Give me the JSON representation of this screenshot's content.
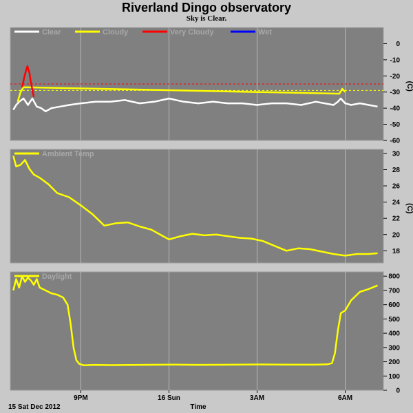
{
  "header": {
    "title": "Riverland Dingo observatory",
    "subtitle": "Sky is Clear."
  },
  "footer": {
    "date": "15 Sat Dec 2012",
    "xlabel": "Time"
  },
  "colors": {
    "background": "#c9c9c9",
    "plot_bg": "#808080",
    "grid": "#b9b9b9",
    "clear": "#ffffff",
    "cloudy": "#ffff00",
    "very_cloudy": "#ff0000",
    "wet": "#0000ff",
    "ambient": "#ffff00",
    "daylight": "#ffff00"
  },
  "chart_data": [
    {
      "type": "line",
      "panel": "sky",
      "unit": "(C)",
      "legend": [
        "Clear",
        "Cloudy",
        "Very Cloudy",
        "Wet"
      ],
      "legend_placement": "top-left",
      "grid": true,
      "ylim": [
        -60,
        10
      ],
      "yticks": [
        0,
        -10,
        -20,
        -30,
        -40,
        -50,
        -60
      ],
      "xlim": [
        18.6,
        31.3
      ],
      "xticks": [
        {
          "x": 21,
          "label": "9PM"
        },
        {
          "x": 24,
          "label": "16 Sun"
        },
        {
          "x": 27,
          "label": "3AM"
        },
        {
          "x": 30,
          "label": "6AM"
        }
      ],
      "thresholds": [
        {
          "name": "Cloudy",
          "value": -29,
          "color": "#ffff00"
        },
        {
          "name": "Very Cloudy",
          "value": -25,
          "color": "#ff0000"
        }
      ],
      "series": [
        {
          "name": "Clear",
          "color": "#ffffff",
          "x": [
            18.7,
            18.8,
            18.9,
            19.05,
            19.2,
            19.35,
            19.5,
            19.65,
            19.8,
            20.0,
            20.3,
            20.6,
            21.0,
            21.5,
            22.0,
            22.5,
            23.0,
            23.5,
            24.0,
            24.5,
            25.0,
            25.5,
            26.0,
            26.5,
            27.0,
            27.5,
            28.0,
            28.5,
            29.0,
            29.3,
            29.6,
            29.75,
            29.85,
            30.0,
            30.2,
            30.5,
            30.8,
            31.1
          ],
          "y": [
            -41,
            -38,
            -36,
            -34,
            -38,
            -34,
            -39,
            -40,
            -42,
            -40,
            -39,
            -38,
            -37,
            -36,
            -36,
            -35,
            -37,
            -36,
            -34,
            -36,
            -37,
            -36,
            -37,
            -37,
            -38,
            -37,
            -37,
            -38,
            -36,
            -37,
            -38,
            -36,
            -34,
            -37,
            -38,
            -37,
            -38,
            -39
          ]
        },
        {
          "name": "Cloudy",
          "color": "#ffff00",
          "x": [
            18.85,
            18.95,
            19.05,
            29.8,
            29.9,
            30.0
          ],
          "y": [
            -36,
            -30,
            -27,
            -31,
            -28,
            -30
          ]
        },
        {
          "name": "Very Cloudy",
          "color": "#ff0000",
          "x": [
            19.0,
            19.1,
            19.18,
            19.25,
            19.3,
            19.4
          ],
          "y": [
            -27,
            -19,
            -14,
            -18,
            -24,
            -33
          ]
        }
      ]
    },
    {
      "type": "line",
      "panel": "ambient",
      "unit": "(C)",
      "legend": [
        "Ambient Temp"
      ],
      "legend_placement": "top-left",
      "grid": true,
      "ylim": [
        16.5,
        30.5
      ],
      "yticks": [
        30,
        28,
        26,
        24,
        22,
        20,
        18
      ],
      "xlim": [
        18.6,
        31.3
      ],
      "series": [
        {
          "name": "Ambient Temp",
          "color": "#ffff00",
          "x": [
            18.7,
            18.8,
            18.95,
            19.1,
            19.25,
            19.4,
            19.6,
            19.9,
            20.2,
            20.6,
            21.0,
            21.4,
            21.8,
            22.2,
            22.6,
            23.0,
            23.4,
            23.8,
            24.0,
            24.4,
            24.8,
            25.2,
            25.6,
            26.0,
            26.4,
            26.8,
            27.2,
            27.6,
            28.0,
            28.4,
            28.8,
            29.2,
            29.6,
            30.0,
            30.4,
            30.8,
            31.1
          ],
          "y": [
            29.7,
            28.4,
            28.6,
            29.2,
            28.1,
            27.4,
            27.0,
            26.2,
            25.1,
            24.6,
            23.6,
            22.5,
            21.1,
            21.4,
            21.5,
            21.0,
            20.6,
            19.8,
            19.4,
            19.8,
            20.1,
            19.9,
            20.0,
            19.8,
            19.6,
            19.5,
            19.2,
            18.6,
            18.0,
            18.3,
            18.2,
            17.9,
            17.6,
            17.4,
            17.6,
            17.6,
            17.7
          ]
        }
      ]
    },
    {
      "type": "line",
      "panel": "daylight",
      "legend": [
        "Daylight"
      ],
      "legend_placement": "top-left",
      "grid": true,
      "ylim": [
        0,
        830
      ],
      "yticks": [
        800,
        700,
        600,
        500,
        400,
        300,
        200,
        100,
        0
      ],
      "xlim": [
        18.6,
        31.3
      ],
      "series": [
        {
          "name": "Daylight",
          "color": "#ffff00",
          "x": [
            18.7,
            18.8,
            18.9,
            19.0,
            19.1,
            19.2,
            19.3,
            19.4,
            19.5,
            19.6,
            19.8,
            20.0,
            20.2,
            20.4,
            20.55,
            20.65,
            20.75,
            20.85,
            20.95,
            21.1,
            21.5,
            22.0,
            23.0,
            24.0,
            25.0,
            26.0,
            27.0,
            28.0,
            29.0,
            29.4,
            29.55,
            29.65,
            29.75,
            29.85,
            30.0,
            30.2,
            30.5,
            30.8,
            31.1
          ],
          "y": [
            700,
            780,
            720,
            800,
            760,
            790,
            770,
            740,
            780,
            720,
            700,
            680,
            670,
            650,
            600,
            470,
            300,
            210,
            185,
            175,
            178,
            176,
            178,
            180,
            178,
            179,
            181,
            180,
            180,
            182,
            190,
            260,
            420,
            540,
            560,
            630,
            690,
            710,
            735
          ]
        }
      ]
    }
  ]
}
